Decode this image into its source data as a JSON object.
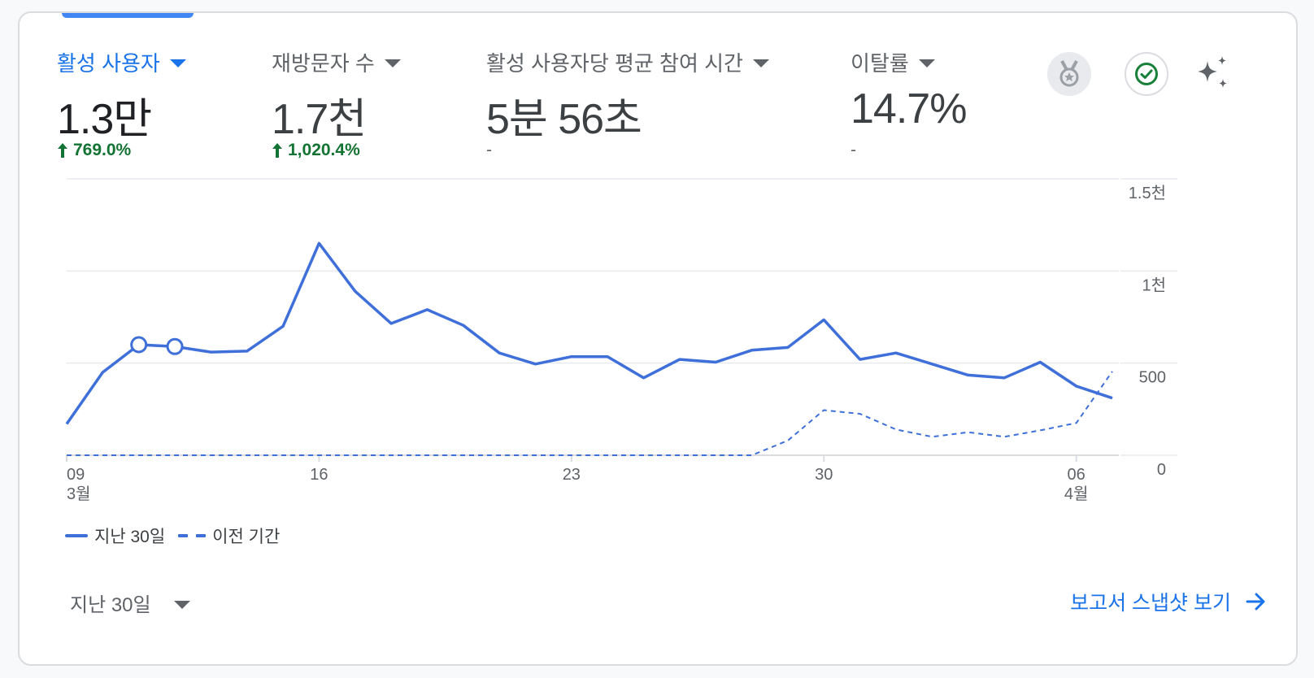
{
  "metrics": [
    {
      "label": "활성 사용자",
      "value": "1.3만",
      "change": "769.0%",
      "trend": "up",
      "active": true
    },
    {
      "label": "재방문자 수",
      "value": "1.7천",
      "change": "1,020.4%",
      "trend": "up",
      "active": false
    },
    {
      "label": "활성 사용자당 평균 참여 시간",
      "value": "5분 56초",
      "change": "-",
      "trend": "none",
      "active": false
    },
    {
      "label": "이탈률",
      "value": "14.7%",
      "change": "-",
      "trend": "none",
      "active": false
    }
  ],
  "icons": {
    "badge": "medal-icon",
    "check": "check-circle-icon",
    "insights": "sparkle-icon"
  },
  "colors": {
    "accent": "#1a73e8",
    "series": "#3f6fd8",
    "positive": "#137333"
  },
  "chart_data": {
    "type": "line",
    "x_start": "2025-03-09",
    "x_tick_labels": [
      "09",
      "16",
      "23",
      "30",
      "06"
    ],
    "x_month_labels": [
      {
        "day_index": 0,
        "label": "3월"
      },
      {
        "day_index": 28,
        "label": "4월"
      }
    ],
    "y_tick_labels": [
      "0",
      "500",
      "1천",
      "1.5천"
    ],
    "y_ticks": [
      0,
      500,
      1000,
      1500
    ],
    "ylim": [
      0,
      1500
    ],
    "grid": true,
    "y_axis_position": "right",
    "legend_position": "bottom-left",
    "series": [
      {
        "name": "지난 30일",
        "style": "solid",
        "values": [
          170,
          450,
          600,
          590,
          560,
          565,
          700,
          1150,
          890,
          715,
          790,
          705,
          555,
          495,
          535,
          535,
          420,
          520,
          505,
          570,
          585,
          735,
          520,
          555,
          495,
          435,
          420,
          505,
          375,
          310
        ]
      },
      {
        "name": "이전 기간",
        "style": "dashed",
        "values": [
          0,
          0,
          0,
          0,
          0,
          0,
          0,
          0,
          0,
          0,
          0,
          0,
          0,
          0,
          0,
          0,
          0,
          0,
          0,
          0,
          80,
          245,
          225,
          140,
          100,
          125,
          100,
          135,
          175,
          455
        ]
      }
    ],
    "highlight_points": [
      2,
      3
    ]
  },
  "legend": {
    "current": "지난 30일",
    "previous": "이전 기간"
  },
  "footer": {
    "range_label": "지난 30일",
    "snapshot_label": "보고서 스냅샷 보기"
  }
}
